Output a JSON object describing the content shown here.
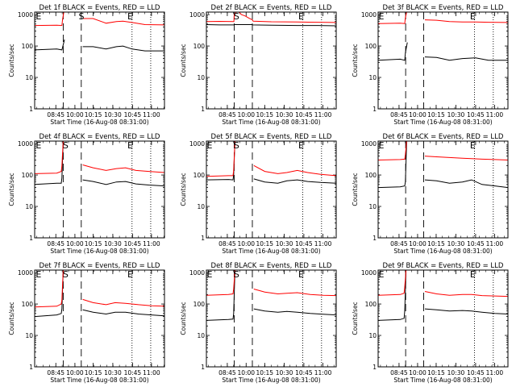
{
  "figure": {
    "xlabel": "Start Time (16-Aug-08 08:31:00)",
    "ylabel": "Counts/sec",
    "x_tick_labels": [
      "08:45",
      "10:00",
      "10:15",
      "10:30",
      "10:45",
      "11:00"
    ],
    "y_tick_labels": [
      "1",
      "10",
      "100",
      "1000"
    ],
    "colors": {
      "events": "#000000",
      "lld": "#ff0000"
    },
    "markers": {
      "start": "S",
      "end": "E"
    }
  },
  "chart_data": [
    {
      "type": "line",
      "title": "Det 1f BLACK = Events, RED = LLD",
      "ylim": [
        1,
        1200
      ],
      "x_ticks": [
        0.163,
        0.31,
        0.451,
        0.602,
        0.754,
        0.9
      ],
      "dashed_x": [
        0.22,
        0.359
      ],
      "dotted_x": [
        0.75,
        0.894
      ],
      "markers": [
        {
          "label": "E",
          "x": 0.03
        },
        {
          "label": "S",
          "x": 0.36
        },
        {
          "label": "E",
          "x": 0.736
        }
      ],
      "series": [
        {
          "name": "BLACK = Events",
          "color": "#000000",
          "x": [
            0,
            0.17,
            0.21,
            0.215,
            0.23,
            0.29,
            0.359,
            0.37,
            0.45,
            0.55,
            0.63,
            0.68,
            0.75,
            0.85,
            1
          ],
          "values": [
            75,
            80,
            75,
            90,
            160,
            null,
            null,
            95,
            95,
            80,
            95,
            100,
            80,
            70,
            70
          ]
        },
        {
          "name": "RED = LLD",
          "color": "#ff0000",
          "x": [
            0,
            0.17,
            0.21,
            0.215,
            0.225,
            0.29,
            0.359,
            0.37,
            0.45,
            0.55,
            0.63,
            0.68,
            0.75,
            0.85,
            1
          ],
          "values": [
            450,
            460,
            450,
            700,
            1200,
            null,
            null,
            750,
            750,
            530,
            600,
            620,
            560,
            480,
            470
          ]
        }
      ]
    },
    {
      "type": "line",
      "title": "Det 2f BLACK = Events, RED = LLD",
      "ylim": [
        1,
        1200
      ],
      "x_ticks": [
        0.161,
        0.306,
        0.449,
        0.6,
        0.751,
        0.898
      ],
      "dashed_x": [
        0.214,
        0.354
      ],
      "dotted_x": [
        0.742,
        0.887
      ],
      "markers": [
        {
          "label": "S",
          "x": 0.232
        },
        {
          "label": "E",
          "x": 0.73
        }
      ],
      "series": [
        {
          "name": "BLACK = Events",
          "color": "#000000",
          "x": [
            0,
            0.1,
            0.21,
            0.214,
            0.35,
            0.354,
            0.5,
            0.7,
            0.86,
            1
          ],
          "values": [
            480,
            470,
            470,
            480,
            480,
            470,
            460,
            450,
            450,
            440
          ]
        },
        {
          "name": "RED = LLD",
          "color": "#ff0000",
          "x": [
            0,
            0.1,
            0.212,
            0.214,
            0.23,
            0.25,
            0.27,
            0.3,
            0.33,
            0.354,
            0.36,
            0.5,
            0.7,
            0.86,
            1
          ],
          "values": [
            600,
            610,
            600,
            1000,
            1200,
            1200,
            1000,
            900,
            760,
            680,
            620,
            590,
            580,
            570,
            560
          ]
        }
      ]
    },
    {
      "type": "line",
      "title": "Det 3f BLACK = Events, RED = LLD",
      "ylim": [
        1,
        1200
      ],
      "x_ticks": [
        0.161,
        0.304,
        0.447,
        0.599,
        0.751,
        0.897
      ],
      "dashed_x": [
        0.212,
        0.351
      ],
      "dotted_x": [
        0.742,
        0.887
      ],
      "markers": [
        {
          "label": "E",
          "x": 0.025
        },
        {
          "label": "E",
          "x": 0.729
        }
      ],
      "series": [
        {
          "name": "BLACK = Events",
          "color": "#000000",
          "x": [
            0,
            0.17,
            0.205,
            0.21,
            0.225,
            0.3,
            0.351,
            0.36,
            0.45,
            0.55,
            0.65,
            0.75,
            0.85,
            1
          ],
          "values": [
            35,
            38,
            35,
            60,
            130,
            null,
            null,
            45,
            43,
            35,
            40,
            42,
            35,
            35
          ]
        },
        {
          "name": "RED = LLD",
          "color": "#ff0000",
          "x": [
            0,
            0.17,
            0.205,
            0.21,
            0.22,
            0.3,
            0.351,
            0.36,
            0.45,
            0.55,
            0.65,
            0.75,
            0.85,
            1
          ],
          "values": [
            520,
            530,
            520,
            800,
            1200,
            null,
            null,
            680,
            660,
            600,
            580,
            580,
            570,
            560
          ]
        }
      ]
    },
    {
      "type": "line",
      "title": "Det 4f BLACK = Events, RED = LLD",
      "ylim": [
        1,
        1200
      ],
      "x_ticks": [
        0.163,
        0.31,
        0.451,
        0.602,
        0.754,
        0.9
      ],
      "dashed_x": [
        0.22,
        0.359
      ],
      "dotted_x": [
        0.75,
        0.894
      ],
      "markers": [
        {
          "label": "E",
          "x": 0.03
        },
        {
          "label": "S",
          "x": 0.238
        },
        {
          "label": "E",
          "x": 0.736
        }
      ],
      "series": [
        {
          "name": "BLACK = Events",
          "color": "#000000",
          "x": [
            0,
            0.17,
            0.205,
            0.21,
            0.22,
            0.3,
            0.359,
            0.37,
            0.45,
            0.55,
            0.63,
            0.7,
            0.78,
            0.88,
            1
          ],
          "values": [
            50,
            55,
            55,
            80,
            1200,
            null,
            null,
            70,
            62,
            50,
            60,
            62,
            52,
            48,
            45
          ]
        },
        {
          "name": "RED = LLD",
          "color": "#ff0000",
          "x": [
            0,
            0.17,
            0.205,
            0.21,
            0.22,
            0.3,
            0.359,
            0.37,
            0.45,
            0.55,
            0.63,
            0.7,
            0.78,
            0.88,
            1
          ],
          "values": [
            110,
            115,
            130,
            200,
            1200,
            null,
            null,
            210,
            170,
            140,
            160,
            170,
            140,
            130,
            120
          ]
        }
      ]
    },
    {
      "type": "line",
      "title": "Det 5f BLACK = Events, RED = LLD",
      "ylim": [
        1,
        1200
      ],
      "x_ticks": [
        0.161,
        0.306,
        0.449,
        0.6,
        0.751,
        0.898
      ],
      "dashed_x": [
        0.214,
        0.354
      ],
      "dotted_x": [
        0.742,
        0.887
      ],
      "markers": [
        {
          "label": "E",
          "x": 0.025
        },
        {
          "label": "S",
          "x": 0.232
        },
        {
          "label": "E",
          "x": 0.73
        }
      ],
      "series": [
        {
          "name": "BLACK = Events",
          "color": "#000000",
          "x": [
            0,
            0.17,
            0.205,
            0.21,
            0.22,
            0.3,
            0.354,
            0.365,
            0.45,
            0.55,
            0.62,
            0.7,
            0.78,
            0.88,
            1
          ],
          "values": [
            70,
            72,
            70,
            100,
            1200,
            null,
            null,
            75,
            60,
            55,
            65,
            70,
            62,
            58,
            55
          ]
        },
        {
          "name": "RED = LLD",
          "color": "#ff0000",
          "x": [
            0,
            0.17,
            0.205,
            0.21,
            0.22,
            0.3,
            0.354,
            0.365,
            0.45,
            0.55,
            0.62,
            0.7,
            0.78,
            0.88,
            1
          ],
          "values": [
            90,
            95,
            95,
            140,
            1200,
            null,
            null,
            200,
            130,
            110,
            120,
            140,
            120,
            105,
            95
          ]
        }
      ]
    },
    {
      "type": "line",
      "title": "Det 6f BLACK = Events, RED = LLD",
      "ylim": [
        1,
        1200
      ],
      "x_ticks": [
        0.161,
        0.304,
        0.447,
        0.599,
        0.751,
        0.897
      ],
      "dashed_x": [
        0.212,
        0.351
      ],
      "dotted_x": [
        0.742,
        0.887
      ],
      "markers": [
        {
          "label": "E",
          "x": 0.025
        },
        {
          "label": "E",
          "x": 0.729
        }
      ],
      "series": [
        {
          "name": "BLACK = Events",
          "color": "#000000",
          "x": [
            0,
            0.17,
            0.205,
            0.21,
            0.22,
            0.3,
            0.351,
            0.36,
            0.45,
            0.55,
            0.65,
            0.72,
            0.8,
            0.9,
            1
          ],
          "values": [
            40,
            42,
            45,
            60,
            1200,
            null,
            null,
            70,
            65,
            55,
            60,
            70,
            50,
            45,
            40
          ]
        },
        {
          "name": "RED = LLD",
          "color": "#ff0000",
          "x": [
            0,
            0.17,
            0.205,
            0.21,
            0.22,
            0.3,
            0.351,
            0.36,
            0.45,
            0.55,
            0.65,
            0.72,
            0.8,
            0.9,
            1
          ],
          "values": [
            300,
            310,
            320,
            450,
            1200,
            null,
            null,
            400,
            380,
            360,
            340,
            330,
            320,
            310,
            300
          ]
        }
      ]
    },
    {
      "type": "line",
      "title": "Det 7f BLACK = Events, RED = LLD",
      "ylim": [
        1,
        1200
      ],
      "x_ticks": [
        0.163,
        0.31,
        0.451,
        0.602,
        0.754,
        0.9
      ],
      "dashed_x": [
        0.22,
        0.359
      ],
      "dotted_x": [
        0.75,
        0.894
      ],
      "markers": [
        {
          "label": "E",
          "x": 0.03
        },
        {
          "label": "S",
          "x": 0.238
        },
        {
          "label": "E",
          "x": 0.736
        }
      ],
      "series": [
        {
          "name": "BLACK = Events",
          "color": "#000000",
          "x": [
            0,
            0.17,
            0.205,
            0.21,
            0.22,
            0.3,
            0.359,
            0.37,
            0.45,
            0.55,
            0.62,
            0.7,
            0.8,
            0.9,
            1
          ],
          "values": [
            40,
            45,
            50,
            70,
            1200,
            null,
            null,
            65,
            55,
            48,
            55,
            55,
            48,
            45,
            42
          ]
        },
        {
          "name": "RED = LLD",
          "color": "#ff0000",
          "x": [
            0,
            0.17,
            0.205,
            0.21,
            0.22,
            0.3,
            0.359,
            0.37,
            0.45,
            0.55,
            0.62,
            0.7,
            0.8,
            0.9,
            1
          ],
          "values": [
            80,
            85,
            100,
            140,
            1200,
            null,
            null,
            140,
            110,
            95,
            110,
            105,
            95,
            88,
            85
          ]
        }
      ]
    },
    {
      "type": "line",
      "title": "Det 8f BLACK = Events, RED = LLD",
      "ylim": [
        1,
        1200
      ],
      "x_ticks": [
        0.161,
        0.306,
        0.449,
        0.6,
        0.751,
        0.898
      ],
      "dashed_x": [
        0.214,
        0.354
      ],
      "dotted_x": [
        0.742,
        0.887
      ],
      "markers": [
        {
          "label": "E",
          "x": 0.025
        },
        {
          "label": "S",
          "x": 0.232
        },
        {
          "label": "E",
          "x": 0.73
        }
      ],
      "series": [
        {
          "name": "BLACK = Events",
          "color": "#000000",
          "x": [
            0,
            0.17,
            0.205,
            0.21,
            0.22,
            0.3,
            0.354,
            0.365,
            0.45,
            0.55,
            0.62,
            0.7,
            0.8,
            0.9,
            1
          ],
          "values": [
            30,
            32,
            33,
            50,
            1200,
            null,
            null,
            70,
            60,
            55,
            58,
            55,
            50,
            47,
            45
          ]
        },
        {
          "name": "RED = LLD",
          "color": "#ff0000",
          "x": [
            0,
            0.17,
            0.205,
            0.21,
            0.22,
            0.3,
            0.354,
            0.365,
            0.45,
            0.55,
            0.62,
            0.7,
            0.8,
            0.9,
            1
          ],
          "values": [
            190,
            200,
            210,
            300,
            1200,
            null,
            null,
            300,
            240,
            210,
            220,
            230,
            200,
            190,
            185
          ]
        }
      ]
    },
    {
      "type": "line",
      "title": "Det 9f BLACK = Events, RED = LLD",
      "ylim": [
        1,
        1200
      ],
      "x_ticks": [
        0.161,
        0.304,
        0.447,
        0.599,
        0.751,
        0.897
      ],
      "dashed_x": [
        0.212,
        0.351
      ],
      "dotted_x": [
        0.742,
        0.887
      ],
      "markers": [
        {
          "label": "E",
          "x": 0.025
        },
        {
          "label": "E",
          "x": 0.729
        }
      ],
      "series": [
        {
          "name": "BLACK = Events",
          "color": "#000000",
          "x": [
            0,
            0.17,
            0.2,
            0.205,
            0.215,
            0.3,
            0.351,
            0.36,
            0.45,
            0.55,
            0.65,
            0.72,
            0.8,
            0.9,
            1
          ],
          "values": [
            30,
            32,
            35,
            60,
            1200,
            null,
            null,
            70,
            65,
            60,
            62,
            60,
            55,
            50,
            48
          ]
        },
        {
          "name": "RED = LLD",
          "color": "#ff0000",
          "x": [
            0,
            0.17,
            0.2,
            0.205,
            0.215,
            0.3,
            0.351,
            0.36,
            0.45,
            0.55,
            0.65,
            0.72,
            0.8,
            0.9,
            1
          ],
          "values": [
            190,
            200,
            220,
            350,
            1200,
            null,
            null,
            250,
            210,
            190,
            200,
            200,
            185,
            180,
            175
          ]
        }
      ]
    }
  ]
}
